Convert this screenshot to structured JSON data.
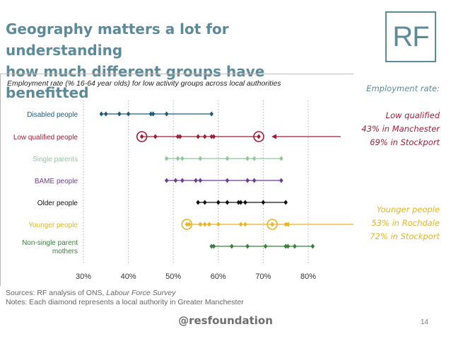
{
  "slide": {
    "title_line1": "Geography matters a lot for understanding",
    "title_line2": "how much different groups have benefitted",
    "logo": "RF",
    "title_color": "#5b8a9a"
  },
  "chart_data": {
    "type": "scatter",
    "title": "Employment rate (% 16-64 year olds) for low activity groups across local authorities",
    "x_tick_labels": [
      "30%",
      "40%",
      "50%",
      "60%",
      "70%",
      "80%"
    ],
    "xlim": [
      30,
      80
    ],
    "grid": true,
    "grid_style": "dotted",
    "series": [
      {
        "name": "Disabled people",
        "name_lines": [
          "Disabled people"
        ],
        "color": "#1c5a7d",
        "values": [
          34,
          35,
          38,
          40,
          45,
          45.5,
          48.5,
          58.5
        ],
        "highlight": []
      },
      {
        "name": "Low qualified people",
        "name_lines": [
          "Low qualified people"
        ],
        "color": "#a01d35",
        "values": [
          43,
          46,
          51,
          51.5,
          55.5,
          57,
          58.5,
          59,
          69
        ],
        "highlight": [
          43,
          69
        ]
      },
      {
        "name": "Single parents",
        "name_lines": [
          "Single parents"
        ],
        "color": "#8dc89a",
        "values": [
          48.5,
          51,
          52,
          56,
          62,
          66.5,
          68,
          74
        ],
        "highlight": []
      },
      {
        "name": "BAME people",
        "name_lines": [
          "BAME people"
        ],
        "color": "#6b3d91",
        "values": [
          48.5,
          50.5,
          52,
          55,
          56,
          62,
          66.5,
          68,
          74
        ],
        "highlight": []
      },
      {
        "name": "Older people",
        "name_lines": [
          "Older people"
        ],
        "color": "#111111",
        "values": [
          55.5,
          57,
          60,
          62,
          64.5,
          65,
          66,
          70,
          75
        ],
        "highlight": []
      },
      {
        "name": "Younger people",
        "name_lines": [
          "Younger people"
        ],
        "color": "#e8b422",
        "values": [
          53,
          53.5,
          56,
          57,
          58,
          60,
          65,
          66,
          72,
          75
        ],
        "highlight": [
          53,
          72
        ]
      },
      {
        "name": "Non-single parent mothers",
        "name_lines": [
          "Non-single parent",
          "mothers"
        ],
        "color": "#3a7d3a",
        "values": [
          58.5,
          59,
          63,
          66.5,
          70.5,
          75,
          75.5,
          77,
          81
        ],
        "highlight": []
      }
    ]
  },
  "callouts": {
    "heading": "Employment rate:",
    "low_qualified": {
      "title": "Low qualified",
      "line2": "43% in Manchester",
      "line3": "69% in Stockport",
      "color": "#a01d35"
    },
    "younger": {
      "title": "Younger people",
      "line2": "53% in Rochdale",
      "line3": "72% in Stockport",
      "color": "#e8b422"
    }
  },
  "notes": {
    "sources_prefix": "Sources: RF analysis of ONS, ",
    "sources_italic": "Labour Force Survey",
    "notes_text": "Notes: Each diamond represents a local authority in Greater Manchester"
  },
  "footer": {
    "handle": "@resfoundation",
    "page": "14"
  }
}
